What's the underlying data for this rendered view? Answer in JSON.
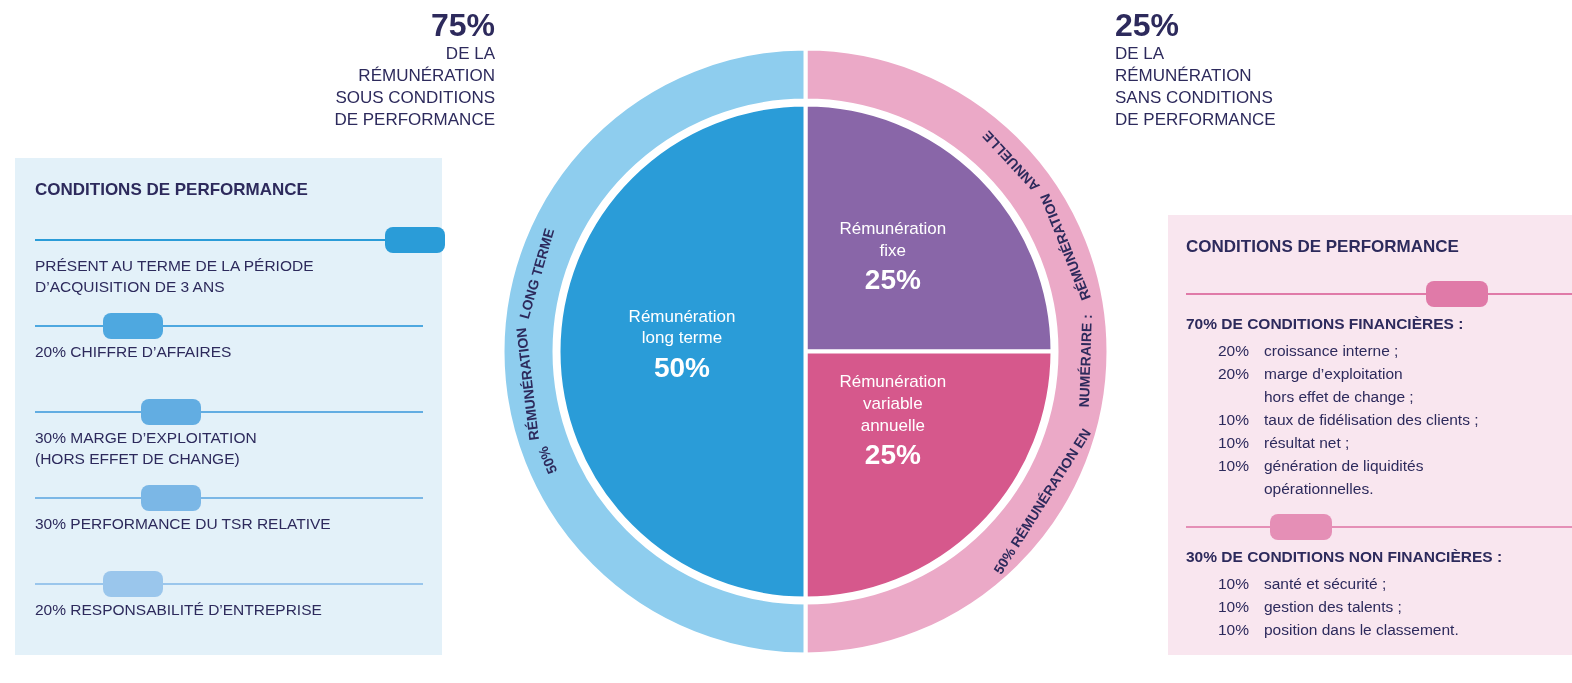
{
  "chart_data": {
    "type": "pie",
    "categories": [
      "Rémunération\nfixe",
      "Rémunération\nvariable\nannuelle",
      "Rémunération\nlong terme",
      "50% RÉMUNÉRATION EN NUMÉRAIRE : RÉMUNÉRATION ANNUELLE",
      "50% RÉMUNÉRATION LONG TERME"
    ],
    "series": [
      {
        "values": [
          25,
          25,
          50,
          null,
          null
        ],
        "colors": [
          "#8966a8",
          "#d6588c",
          "#2a9cd8",
          null,
          null
        ],
        "value_labels": [
          "25%",
          "25%",
          "50%",
          null,
          null
        ]
      },
      {
        "type": "donut",
        "values": [
          null,
          null,
          null,
          50,
          50
        ],
        "colors": [
          null,
          null,
          null,
          "#eba9c7",
          "#8ecdee"
        ]
      }
    ],
    "annotations": [
      "75%",
      "DE LA\nRÉMUNÉRATION\nSOUS CONDITIONS\nDE PERFORMANCE",
      "25%",
      "DE LA\nRÉMUNÉRATION\nSANS CONDITIONS\nDE PERFORMANCE",
      "CONDITIONS DE PERFORMANCE",
      "PRÉSENT AU TERME DE LA PÉRIODE\nD’ACQUISITION DE 3 ANS",
      "20% CHIFFRE D’AFFAIRES",
      "30% MARGE D’EXPLOITATION\n(HORS EFFET DE CHANGE)",
      "30% PERFORMANCE DU TSR RELATIVE",
      "20% RESPONSABILITÉ D’ENTREPRISE",
      "CONDITIONS DE PERFORMANCE",
      "70% DE CONDITIONS FINANCIÈRES :",
      "20% croissance interne ;",
      "20% marge d’exploitation\nhors effet de change ;",
      "10% taux de fidélisation des clients ;",
      "10% résultat net ;",
      "10% génération de liquidités\nopérationnelles.",
      "30% DE CONDITIONS NON FINANCIÈRES :",
      "10% santé et sécurité ;",
      "10% gestion des talents ;",
      "10% position dans le classement."
    ]
  }
}
